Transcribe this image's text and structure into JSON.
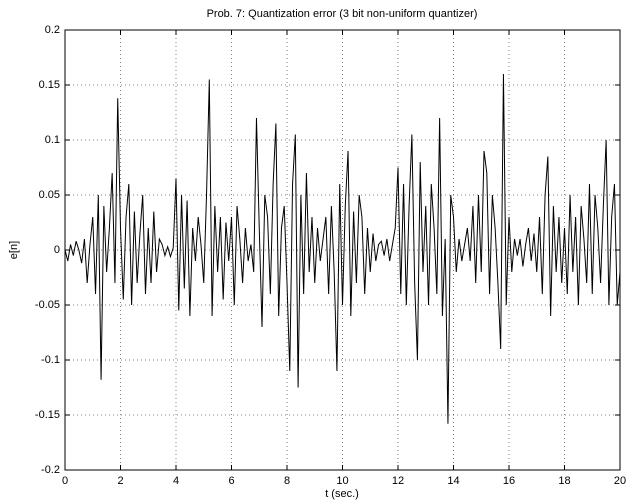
{
  "chart_data": {
    "type": "line",
    "title": "Prob. 7: Quantization error (3 bit non-uniform quantizer)",
    "x_label": "t (sec.)",
    "y_label": "e[n]",
    "xlim": [
      0,
      20
    ],
    "xticks": [
      0,
      2,
      4,
      6,
      8,
      10,
      12,
      14,
      16,
      18,
      20
    ],
    "ylim": [
      -0.2,
      0.2
    ],
    "yticks": [
      -0.2,
      -0.15,
      -0.1,
      -0.05,
      0,
      0.05,
      0.1,
      0.15,
      0.2
    ],
    "grid": true,
    "x": [
      0,
      0.1,
      0.2,
      0.3,
      0.4,
      0.5,
      0.6,
      0.7,
      0.8,
      0.9,
      1,
      1.1,
      1.2,
      1.3,
      1.4,
      1.5,
      1.6,
      1.7,
      1.8,
      1.9,
      2,
      2.1,
      2.2,
      2.3,
      2.4,
      2.5,
      2.6,
      2.7,
      2.8,
      2.9,
      3,
      3.1,
      3.2,
      3.3,
      3.4,
      3.5,
      3.6,
      3.7,
      3.8,
      3.9,
      4,
      4.1,
      4.2,
      4.3,
      4.4,
      4.5,
      4.6,
      4.7,
      4.8,
      4.9,
      5,
      5.1,
      5.2,
      5.3,
      5.4,
      5.5,
      5.6,
      5.7,
      5.8,
      5.9,
      6,
      6.1,
      6.2,
      6.3,
      6.4,
      6.5,
      6.6,
      6.7,
      6.8,
      6.9,
      7,
      7.1,
      7.2,
      7.3,
      7.4,
      7.5,
      7.6,
      7.7,
      7.8,
      7.9,
      8,
      8.1,
      8.2,
      8.3,
      8.4,
      8.5,
      8.6,
      8.7,
      8.8,
      8.9,
      9,
      9.1,
      9.2,
      9.3,
      9.4,
      9.5,
      9.6,
      9.7,
      9.8,
      9.9,
      10,
      10.1,
      10.2,
      10.3,
      10.4,
      10.5,
      10.6,
      10.7,
      10.8,
      10.9,
      11,
      11.1,
      11.2,
      11.3,
      11.4,
      11.5,
      11.6,
      11.7,
      11.8,
      11.9,
      12,
      12.1,
      12.2,
      12.3,
      12.4,
      12.5,
      12.6,
      12.7,
      12.8,
      12.9,
      13,
      13.1,
      13.2,
      13.3,
      13.4,
      13.5,
      13.6,
      13.7,
      13.8,
      13.9,
      14,
      14.1,
      14.2,
      14.3,
      14.4,
      14.5,
      14.6,
      14.7,
      14.8,
      14.9,
      15,
      15.1,
      15.2,
      15.3,
      15.4,
      15.5,
      15.6,
      15.7,
      15.8,
      15.9,
      16,
      16.1,
      16.2,
      16.3,
      16.4,
      16.5,
      16.6,
      16.7,
      16.8,
      16.9,
      17,
      17.1,
      17.2,
      17.3,
      17.4,
      17.5,
      17.6,
      17.7,
      17.8,
      17.9,
      18,
      18.1,
      18.2,
      18.3,
      18.4,
      18.5,
      18.6,
      18.7,
      18.8,
      18.9,
      19,
      19.1,
      19.2,
      19.3,
      19.4,
      19.5,
      19.6,
      19.7,
      19.8,
      19.9,
      20
    ],
    "series": [
      {
        "color": "#000000",
        "values": [
          0,
          -0.01,
          0.005,
          -0.005,
          0.008,
          0,
          -0.012,
          0.01,
          -0.03,
          0.005,
          0.03,
          -0.04,
          0.05,
          -0.118,
          0.04,
          -0.02,
          0.02,
          0.07,
          -0.03,
          0.138,
          0.02,
          -0.045,
          0.03,
          0.06,
          -0.05,
          0.035,
          -0.03,
          0.015,
          0.05,
          -0.04,
          0.02,
          -0.03,
          0.035,
          -0.02,
          0.01,
          0.005,
          -0.005,
          0.003,
          -0.006,
          0.002,
          0.065,
          -0.055,
          0.05,
          -0.035,
          0.045,
          -0.06,
          0.02,
          -0.01,
          0.03,
          0.005,
          -0.03,
          0.05,
          0.155,
          -0.06,
          0.04,
          -0.02,
          0.03,
          -0.045,
          0.025,
          -0.01,
          0.03,
          -0.05,
          0.04,
          0.01,
          -0.03,
          0.02,
          -0.01,
          0.005,
          -0.02,
          0.12,
          0.02,
          -0.07,
          0.05,
          0.03,
          -0.04,
          0.06,
          0.115,
          -0.06,
          0.02,
          0.04,
          -0.03,
          -0.11,
          0.06,
          0.105,
          -0.125,
          0.05,
          -0.04,
          0.07,
          -0.02,
          0.03,
          -0.03,
          0.02,
          -0.01,
          0.01,
          0.03,
          -0.04,
          0.04,
          -0.02,
          -0.11,
          0.06,
          -0.05,
          0.04,
          0.09,
          -0.06,
          0.035,
          -0.03,
          0.05,
          0.03,
          -0.04,
          0.02,
          -0.02,
          0.015,
          -0.01,
          0.005,
          0.008,
          -0.005,
          0.01,
          -0.01,
          0.005,
          0.02,
          0.075,
          -0.04,
          0.06,
          -0.05,
          0.04,
          0.105,
          -0.03,
          -0.1,
          0.08,
          -0.02,
          0.04,
          -0.05,
          0.06,
          0.02,
          -0.04,
          0.12,
          -0.06,
          0.01,
          -0.158,
          0.05,
          0.03,
          -0.02,
          0.01,
          -0.01,
          0.005,
          0.02,
          -0.01,
          0.04,
          -0.03,
          0.05,
          -0.02,
          0.09,
          0.07,
          -0.04,
          0.05,
          0.02,
          -0.03,
          -0.09,
          0.16,
          -0.05,
          0.03,
          -0.02,
          0.01,
          -0.005,
          0.01,
          -0.015,
          0.005,
          0.02,
          -0.01,
          0.015,
          -0.02,
          0.03,
          -0.04,
          0.05,
          0.085,
          -0.06,
          0.04,
          -0.02,
          0.03,
          -0.03,
          0.02,
          -0.04,
          0.05,
          -0.02,
          0.03,
          -0.05,
          0.04,
          0.01,
          -0.03,
          0.06,
          -0.04,
          0.05,
          0.02,
          -0.03,
          0.04,
          0.1,
          -0.05,
          0.03,
          0.06,
          -0.05,
          -0.02
        ]
      }
    ]
  }
}
